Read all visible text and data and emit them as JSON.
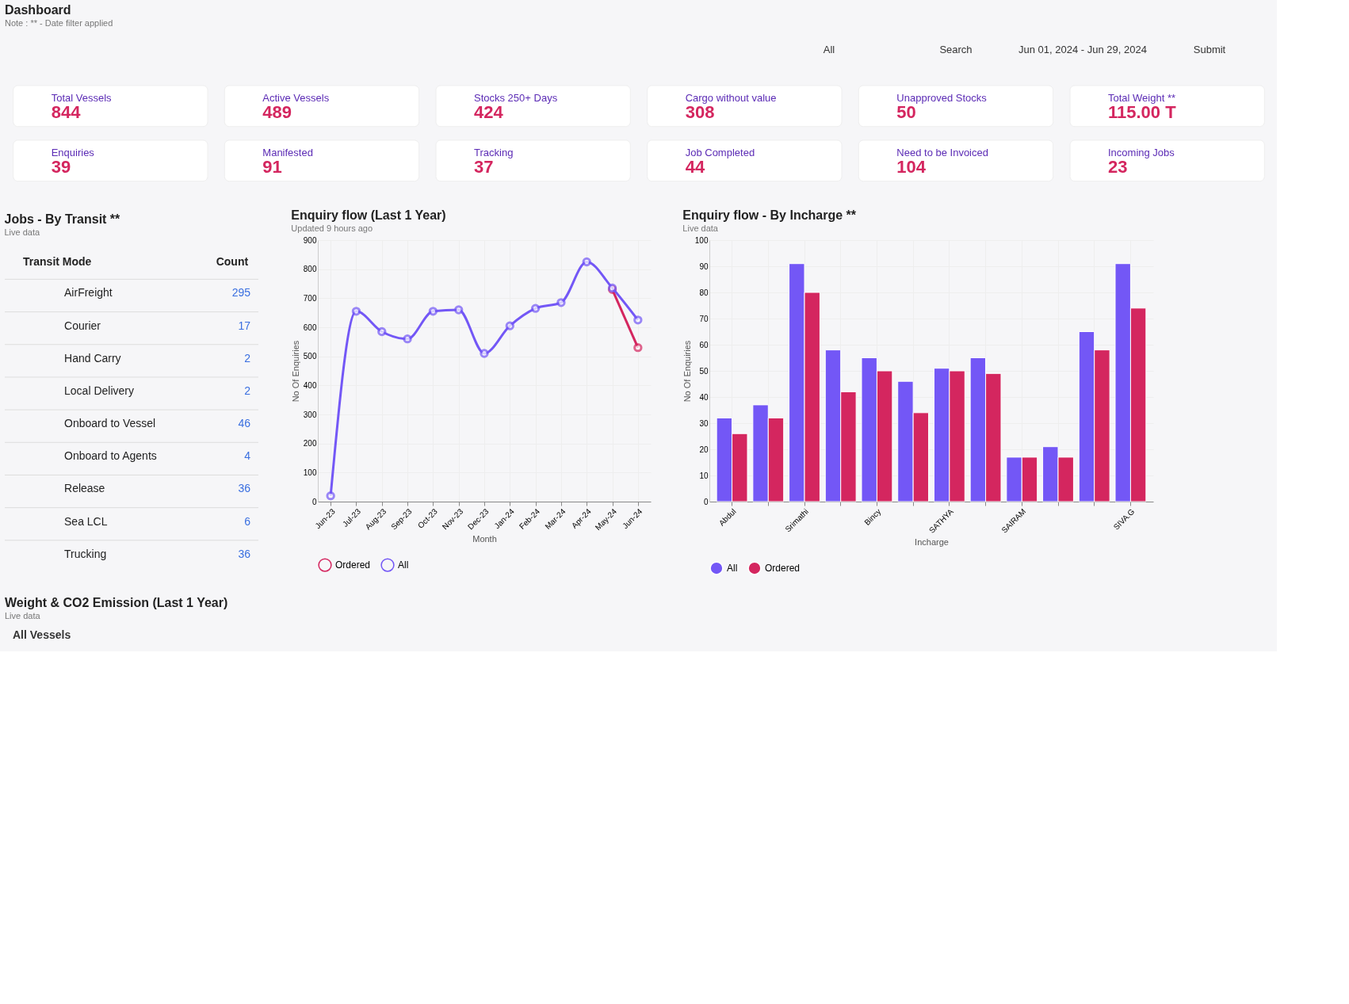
{
  "chart_data": [
    {
      "type": "other",
      "title": "Dashboard",
      "subtitle": "Note : ** - Date filter applied",
      "annotations": [
        "All",
        "Search",
        "Jun 01, 2024 - Jun 29, 2024",
        "Submit"
      ],
      "categories": [
        "Total Vessels",
        "Active Vessels",
        "Stocks 250+ Days",
        "Cargo without value",
        "Unapproved Stocks",
        "Total Weight **",
        "Enquiries",
        "Manifested",
        "Tracking",
        "Job Completed",
        "Need to be Invoiced",
        "Incoming Jobs"
      ],
      "values": [
        844,
        489,
        424,
        308,
        50,
        115,
        39,
        91,
        37,
        44,
        104,
        23
      ],
      "value_labels": [
        "844",
        "489",
        "424",
        "308",
        "50",
        "115.00 T",
        "39",
        "91",
        "37",
        "44",
        "104",
        "23"
      ]
    },
    {
      "type": "other",
      "title": "Jobs - By Transit **",
      "subtitle": "Live data",
      "xlabel": "Transit Mode",
      "ylabel": "Count",
      "categories": [
        "AirFreight",
        "Courier",
        "Hand Carry",
        "Local Delivery",
        "Onboard to Vessel",
        "Onboard to Agents",
        "Release",
        "Sea LCL",
        "Trucking"
      ],
      "values": [
        295,
        17,
        2,
        2,
        46,
        4,
        36,
        6,
        36
      ],
      "data_labels": true
    },
    {
      "type": "line",
      "title": "Enquiry flow (Last 1 Year)",
      "subtitle": "Updated 9 hours ago",
      "xlabel": "Month",
      "ylabel": "No Of Enquiries",
      "categories": [
        "Jun-23",
        "Jul-23",
        "Aug-23",
        "Sep-23",
        "Oct-23",
        "Nov-23",
        "Dec-23",
        "Jan-24",
        "Feb-24",
        "Mar-24",
        "Apr-24",
        "May-24",
        "Jun-24"
      ],
      "series": [
        {
          "name": "Ordered",
          "color": "#d4265f",
          "values": [
            null,
            null,
            null,
            null,
            null,
            null,
            null,
            null,
            null,
            null,
            null,
            730,
            530
          ]
        },
        {
          "name": "All",
          "color": "#7357f6",
          "values": [
            20,
            655,
            585,
            560,
            655,
            660,
            510,
            605,
            665,
            685,
            825,
            735,
            625
          ]
        }
      ],
      "ylim": [
        0,
        900
      ],
      "yticks": [
        0,
        100,
        200,
        300,
        400,
        500,
        600,
        700,
        800,
        900
      ],
      "grid": true,
      "legend": "bottom",
      "marker": "circle"
    },
    {
      "type": "bar",
      "title": "Enquiry flow - By Incharge **",
      "subtitle": "Live data",
      "xlabel": "Incharge",
      "ylabel": "No Of Enquiries",
      "categories": [
        "Abdul",
        null,
        "Srimathi",
        null,
        "Bincy",
        null,
        "SATHYA",
        null,
        "SAIRAM",
        null,
        null,
        "SIVA.G"
      ],
      "series": [
        {
          "name": "All",
          "color": "#7357f6",
          "values": [
            32,
            37,
            91,
            58,
            55,
            46,
            51,
            55,
            17,
            21,
            65,
            91
          ]
        },
        {
          "name": "Ordered",
          "color": "#d4265f",
          "values": [
            26,
            32,
            80,
            42,
            50,
            34,
            50,
            49,
            17,
            17,
            58,
            74
          ]
        }
      ],
      "ylim": [
        0,
        100
      ],
      "yticks": [
        0,
        10,
        20,
        30,
        40,
        50,
        60,
        70,
        80,
        90,
        100
      ],
      "grid": true,
      "legend": "bottom"
    },
    {
      "type": "other",
      "title": "Weight & CO2 Emission (Last 1 Year)",
      "subtitle": "Live data",
      "annotations": [
        "All Vessels"
      ]
    }
  ]
}
